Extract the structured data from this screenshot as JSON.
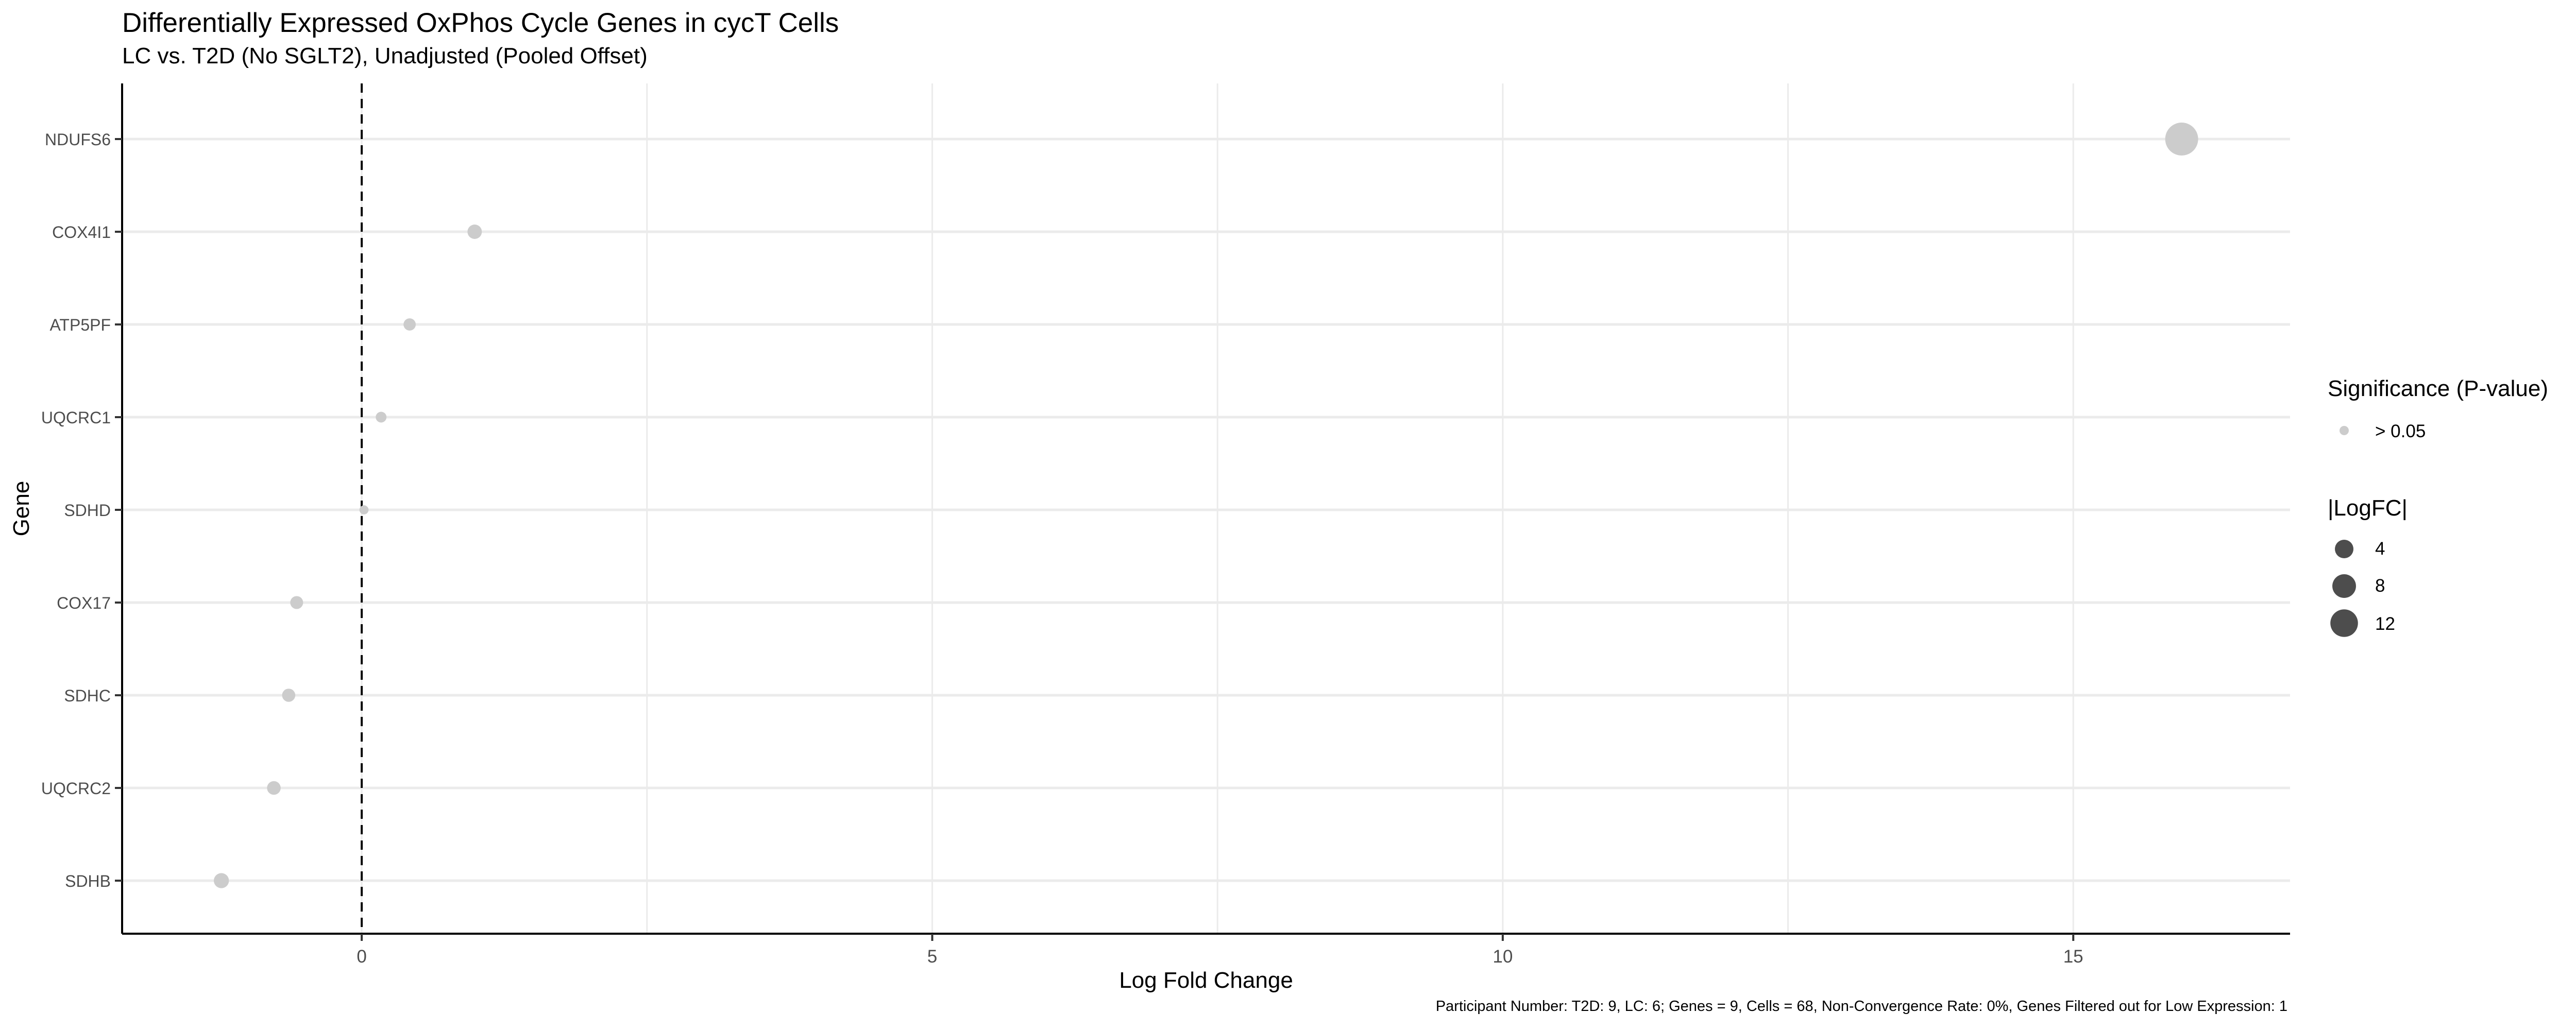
{
  "chart_data": {
    "type": "scatter",
    "title": "Differentially Expressed OxPhos Cycle Genes in cycT Cells",
    "subtitle": "LC vs. T2D (No SGLT2), Unadjusted (Pooled Offset)",
    "xlabel": "Log Fold Change",
    "ylabel": "Gene",
    "caption": "Participant Number: T2D: 9, LC: 6; Genes = 9, Cells = 68, Non-Convergence Rate: 0%, Genes Filtered out for Low Expression: 1",
    "xlim": [
      -2.1,
      16.9
    ],
    "xticks": [
      0,
      5,
      10,
      15
    ],
    "xtick_labels": [
      "0",
      "5",
      "10",
      "15"
    ],
    "reference_line": {
      "x": 0,
      "style": "dashed"
    },
    "grid": true,
    "categories": [
      "NDUFS6",
      "COX4I1",
      "ATP5PF",
      "UQCRC1",
      "SDHD",
      "COX17",
      "SDHC",
      "UQCRC2",
      "SDHB"
    ],
    "points": [
      {
        "gene": "NDUFS6",
        "logfc": 15.95,
        "significance": "> 0.05"
      },
      {
        "gene": "COX4I1",
        "logfc": 0.99,
        "significance": "> 0.05"
      },
      {
        "gene": "ATP5PF",
        "logfc": 0.42,
        "significance": "> 0.05"
      },
      {
        "gene": "UQCRC1",
        "logfc": 0.17,
        "significance": "> 0.05"
      },
      {
        "gene": "SDHD",
        "logfc": 0.02,
        "significance": "> 0.05"
      },
      {
        "gene": "COX17",
        "logfc": -0.57,
        "significance": "> 0.05"
      },
      {
        "gene": "SDHC",
        "logfc": -0.64,
        "significance": "> 0.05"
      },
      {
        "gene": "UQCRC2",
        "logfc": -0.77,
        "significance": "> 0.05"
      },
      {
        "gene": "SDHB",
        "logfc": -1.23,
        "significance": "> 0.05"
      }
    ],
    "legend": {
      "placement": "right",
      "color_title": "Significance (P-value)",
      "color_items": [
        {
          "label": "> 0.05",
          "color": "#cccccc"
        }
      ],
      "size_title": "|LogFC|",
      "size_items": [
        {
          "label": "4",
          "value": 4
        },
        {
          "label": "8",
          "value": 8
        },
        {
          "label": "12",
          "value": 12
        }
      ]
    },
    "colors": {
      "point": "#cccccc",
      "legend_size_point": "#4d4d4d",
      "grid": "#ebebeb",
      "axis": "#000000"
    }
  }
}
